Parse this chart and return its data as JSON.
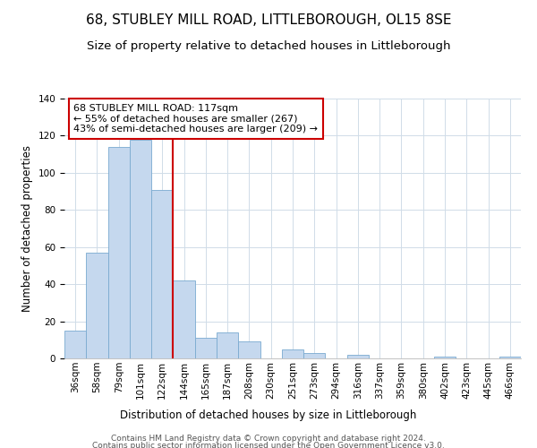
{
  "title": "68, STUBLEY MILL ROAD, LITTLEBOROUGH, OL15 8SE",
  "subtitle": "Size of property relative to detached houses in Littleborough",
  "xlabel": "Distribution of detached houses by size in Littleborough",
  "ylabel": "Number of detached properties",
  "bar_labels": [
    "36sqm",
    "58sqm",
    "79sqm",
    "101sqm",
    "122sqm",
    "144sqm",
    "165sqm",
    "187sqm",
    "208sqm",
    "230sqm",
    "251sqm",
    "273sqm",
    "294sqm",
    "316sqm",
    "337sqm",
    "359sqm",
    "380sqm",
    "402sqm",
    "423sqm",
    "445sqm",
    "466sqm"
  ],
  "bar_values": [
    15,
    57,
    114,
    118,
    91,
    42,
    11,
    14,
    9,
    0,
    5,
    3,
    0,
    2,
    0,
    0,
    0,
    1,
    0,
    0,
    1
  ],
  "bar_color": "#c5d8ee",
  "bar_edge_color": "#7aaad0",
  "vline_color": "#cc0000",
  "annotation_line1": "68 STUBLEY MILL ROAD: 117sqm",
  "annotation_line2": "← 55% of detached houses are smaller (267)",
  "annotation_line3": "43% of semi-detached houses are larger (209) →",
  "annotation_box_facecolor": "white",
  "annotation_box_edgecolor": "#cc0000",
  "ylim": [
    0,
    140
  ],
  "yticks": [
    0,
    20,
    40,
    60,
    80,
    100,
    120,
    140
  ],
  "footnote_line1": "Contains HM Land Registry data © Crown copyright and database right 2024.",
  "footnote_line2": "Contains public sector information licensed under the Open Government Licence v3.0.",
  "title_fontsize": 11,
  "subtitle_fontsize": 9.5,
  "axis_label_fontsize": 8.5,
  "tick_fontsize": 7.5,
  "annotation_fontsize": 8,
  "footnote_fontsize": 6.5,
  "vline_bar_index": 4
}
